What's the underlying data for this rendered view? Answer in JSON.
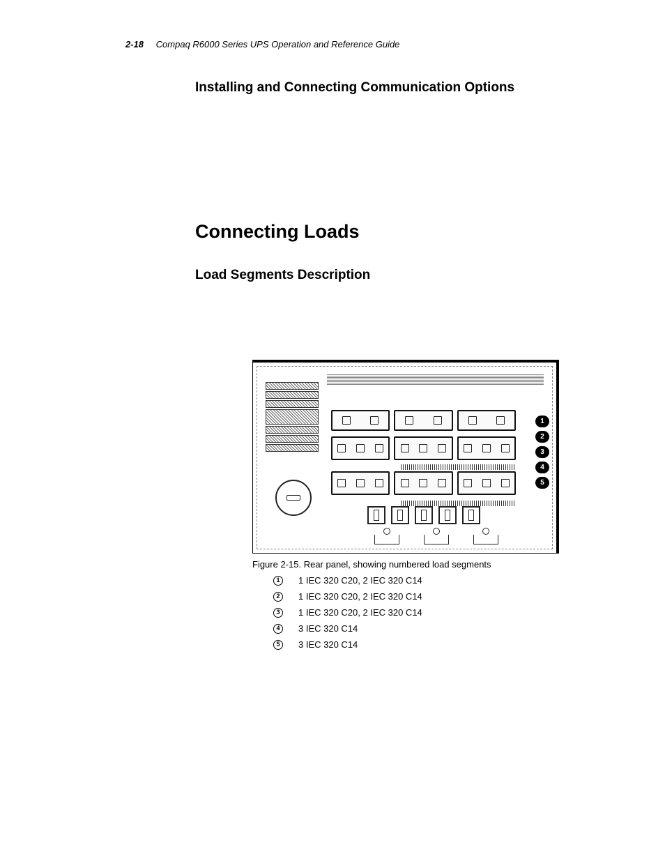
{
  "header": {
    "page_number": "2-18",
    "doc_title": "Compaq R6000 Series UPS Operation and Reference Guide"
  },
  "headings": {
    "h2": "Installing and Connecting Communication Options",
    "h1": "Connecting Loads",
    "h3": "Load Segments Description"
  },
  "figure": {
    "caption": "Figure 2-15.  Rear panel, showing numbered load segments",
    "callouts": [
      "1",
      "2",
      "3",
      "4",
      "5"
    ]
  },
  "legend": [
    {
      "num": "1",
      "text": "1 IEC 320 C20, 2 IEC 320 C14"
    },
    {
      "num": "2",
      "text": "1 IEC 320 C20, 2 IEC 320 C14"
    },
    {
      "num": "3",
      "text": "1 IEC 320 C20, 2 IEC 320 C14"
    },
    {
      "num": "4",
      "text": "3 IEC 320 C14"
    },
    {
      "num": "5",
      "text": "3 IEC 320 C14"
    }
  ],
  "colors": {
    "text": "#000000",
    "background": "#ffffff"
  },
  "fonts": {
    "header_size_pt": 10,
    "h1_size_pt": 20,
    "h2_size_pt": 14,
    "h3_size_pt": 14,
    "body_size_pt": 10
  }
}
